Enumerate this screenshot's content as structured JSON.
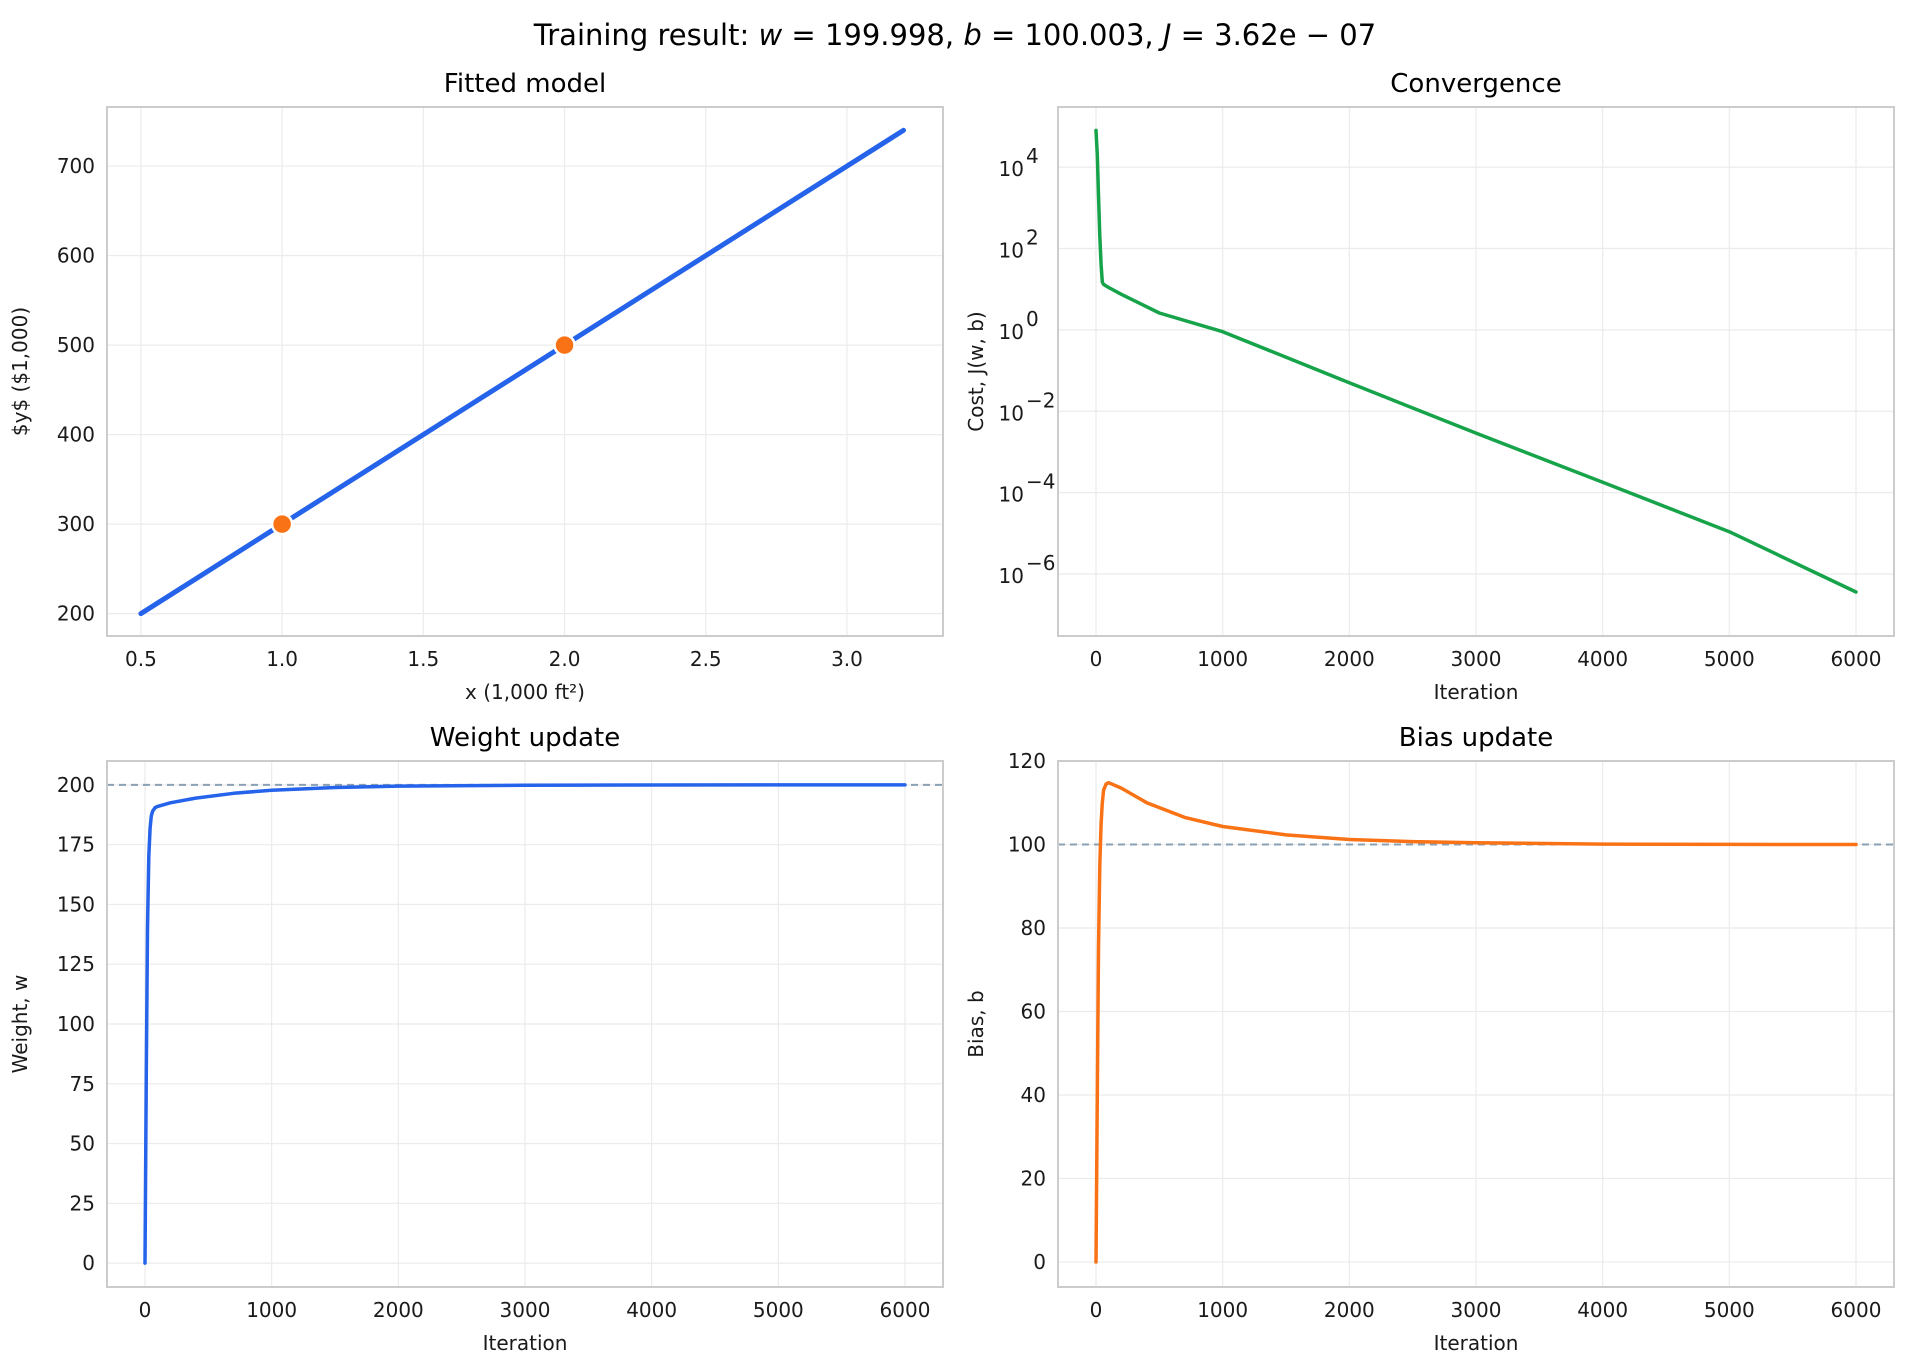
{
  "figure": {
    "suptitle_prefix": "Training result: ",
    "suptitle_w": "w",
    "suptitle_w_val": " = 199.998, ",
    "suptitle_b": "b",
    "suptitle_b_val": " = 100.003, ",
    "suptitle_J": "J",
    "suptitle_J_val": " = 3.62e − 07"
  },
  "colors": {
    "blue": "#2563eb",
    "orange": "#f97316",
    "green": "#16a34a",
    "ref": "#8aa0b4"
  },
  "chart_data": [
    {
      "id": "fitted",
      "type": "line",
      "title": "Fitted model",
      "xlabel": "x (1,000 ft²)",
      "ylabel": "$y$ ($1,000)",
      "xlim": [
        0.38,
        3.34
      ],
      "ylim": [
        175,
        766
      ],
      "xticks": [
        0.5,
        1.0,
        1.5,
        2.0,
        2.5,
        3.0
      ],
      "xtick_labels": [
        "0.5",
        "1.0",
        "1.5",
        "2.0",
        "2.5",
        "3.0"
      ],
      "yticks": [
        200,
        300,
        400,
        500,
        600,
        700
      ],
      "ytick_labels": [
        "200",
        "300",
        "400",
        "500",
        "600",
        "700"
      ],
      "series": [
        {
          "type": "line",
          "color": "#2563eb",
          "x": [
            0.5,
            3.2
          ],
          "y": [
            200,
            740
          ]
        },
        {
          "type": "scatter",
          "color": "#f97316",
          "x": [
            1.0,
            2.0
          ],
          "y": [
            300,
            500
          ]
        }
      ]
    },
    {
      "id": "convergence",
      "type": "line",
      "title": "Convergence",
      "xlabel": "Iteration",
      "ylabel": "Cost, J(w, b)",
      "yscale": "log",
      "xlim": [
        -300,
        6300
      ],
      "ylim": [
        3e-08,
        300000
      ],
      "xticks": [
        0,
        1000,
        2000,
        3000,
        4000,
        5000,
        6000
      ],
      "xtick_labels": [
        "0",
        "1000",
        "2000",
        "3000",
        "4000",
        "5000",
        "6000"
      ],
      "yticks": [
        1e-06,
        0.0001,
        0.01,
        1,
        100,
        10000
      ],
      "ytick_labels": [
        "10",
        "10",
        "10",
        "10",
        "10",
        "10"
      ],
      "ytick_exponents": [
        "−6",
        "−4",
        "−2",
        "0",
        "2",
        "4"
      ],
      "series": [
        {
          "type": "line",
          "color": "#16a34a",
          "x": [
            0,
            10,
            20,
            30,
            40,
            50,
            60,
            70,
            80,
            100,
            200,
            500,
            1000,
            2000,
            3000,
            4000,
            5000,
            6000
          ],
          "y": [
            80000,
            20000,
            2000,
            200,
            40,
            15,
            13,
            12.5,
            12,
            11,
            7.5,
            2.6,
            0.9,
            0.05,
            0.0029,
            0.00018,
            1.1e-05,
            3.62e-07
          ]
        }
      ]
    },
    {
      "id": "weight",
      "type": "line",
      "title": "Weight update",
      "xlabel": "Iteration",
      "ylabel": "Weight, w",
      "xlim": [
        -300,
        6300
      ],
      "ylim": [
        -10,
        210
      ],
      "xticks": [
        0,
        1000,
        2000,
        3000,
        4000,
        5000,
        6000
      ],
      "xtick_labels": [
        "0",
        "1000",
        "2000",
        "3000",
        "4000",
        "5000",
        "6000"
      ],
      "yticks": [
        0,
        25,
        50,
        75,
        100,
        125,
        150,
        175,
        200
      ],
      "ytick_labels": [
        "0",
        "25",
        "50",
        "75",
        "100",
        "125",
        "150",
        "175",
        "200"
      ],
      "hline": 200,
      "series": [
        {
          "type": "line",
          "color": "#2563eb",
          "x": [
            0,
            10,
            20,
            30,
            40,
            50,
            60,
            80,
            100,
            200,
            400,
            700,
            1000,
            1500,
            2000,
            3000,
            4000,
            5000,
            6000
          ],
          "y": [
            0,
            80,
            140,
            170,
            182,
            187,
            189,
            190.5,
            191,
            192.5,
            194.5,
            196.5,
            197.8,
            198.9,
            199.5,
            199.85,
            199.95,
            199.99,
            199.998
          ]
        }
      ]
    },
    {
      "id": "bias",
      "type": "line",
      "title": "Bias update",
      "xlabel": "Iteration",
      "ylabel": "Bias, b",
      "xlim": [
        -300,
        6300
      ],
      "ylim": [
        -6,
        120
      ],
      "xticks": [
        0,
        1000,
        2000,
        3000,
        4000,
        5000,
        6000
      ],
      "xtick_labels": [
        "0",
        "1000",
        "2000",
        "3000",
        "4000",
        "5000",
        "6000"
      ],
      "yticks": [
        0,
        20,
        40,
        60,
        80,
        100,
        120
      ],
      "ytick_labels": [
        "0",
        "20",
        "40",
        "60",
        "80",
        "100",
        "120"
      ],
      "hline": 100,
      "series": [
        {
          "type": "line",
          "color": "#f97316",
          "x": [
            0,
            10,
            20,
            30,
            40,
            50,
            60,
            80,
            100,
            200,
            400,
            700,
            1000,
            1500,
            2000,
            2500,
            3000,
            4000,
            5000,
            6000
          ],
          "y": [
            0,
            40,
            75,
            95,
            105,
            110,
            113,
            114.5,
            114.8,
            113.5,
            110,
            106.5,
            104.3,
            102.3,
            101.2,
            100.7,
            100.4,
            100.1,
            100.03,
            100.003
          ]
        }
      ]
    }
  ]
}
